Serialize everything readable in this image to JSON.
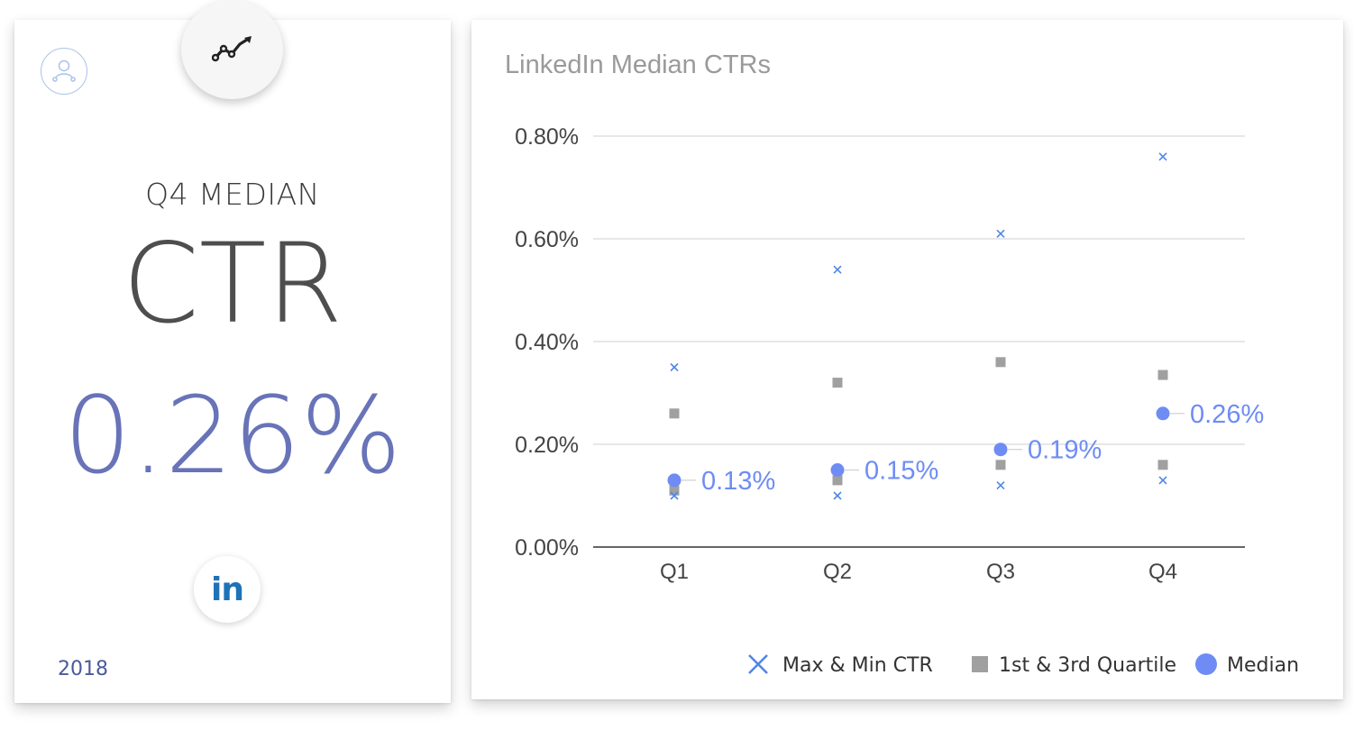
{
  "summary": {
    "subtitle": "Q4 MEDIAN",
    "metric": "CTR",
    "value": "0.26%",
    "year": "2018",
    "network_logo_text": "in"
  },
  "icons": {
    "top": "trend-up-icon",
    "user": "user-network-icon",
    "network": "linkedin-icon"
  },
  "colors": {
    "median": "#6e8cf4",
    "quartile": "#a0a0a0",
    "maxmin": "#4f86e8",
    "value": "#6873b8",
    "linkedin": "#1d72b8"
  },
  "chart_data": {
    "type": "scatter",
    "title": "LinkedIn Median CTRs",
    "categories": [
      "Q1",
      "Q2",
      "Q3",
      "Q4"
    ],
    "ylim": [
      0,
      0.8
    ],
    "yticks": [
      0,
      0.2,
      0.4,
      0.6,
      0.8
    ],
    "ytick_labels": [
      "0.00%",
      "0.20%",
      "0.40%",
      "0.60%",
      "0.80%"
    ],
    "grid": true,
    "legend_position": "bottom-right",
    "series": [
      {
        "name": "Max & Min CTR",
        "marker": "x",
        "max": [
          0.35,
          0.54,
          0.61,
          0.76
        ],
        "min": [
          0.1,
          0.1,
          0.12,
          0.13
        ]
      },
      {
        "name": "1st & 3rd Quartile",
        "marker": "square",
        "q3": [
          0.26,
          0.32,
          0.36,
          0.335
        ],
        "q1": [
          0.11,
          0.13,
          0.16,
          0.16
        ]
      },
      {
        "name": "Median",
        "marker": "circle",
        "values": [
          0.13,
          0.15,
          0.19,
          0.26
        ],
        "labels": [
          "0.13%",
          "0.15%",
          "0.19%",
          "0.26%"
        ]
      }
    ]
  }
}
